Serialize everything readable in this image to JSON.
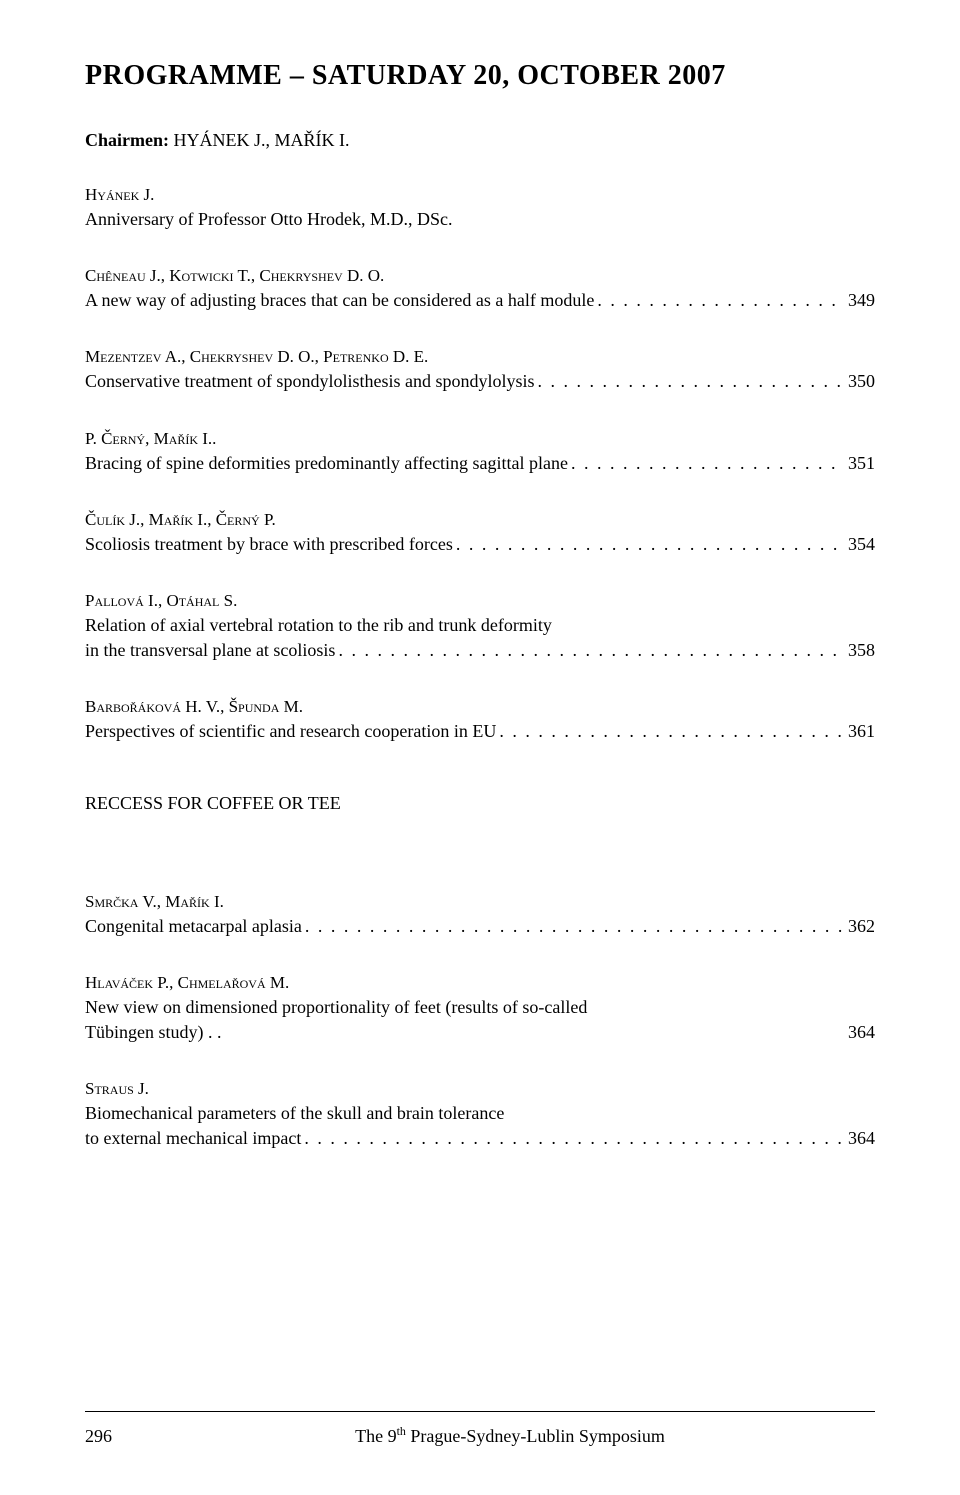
{
  "title": "PROGRAMME – SATURDAY 20, OCTOBER 2007",
  "chairmen_label": "Chairmen:",
  "chairmen_names": " HYÁNEK J., MAŘÍK I.",
  "entries": [
    {
      "author": "Hyánek J.",
      "title_line1": "Anniversary of Professor Otto Hrodek, M.D., DSc.",
      "page": "",
      "no_page": true
    },
    {
      "author": "Chêneau J., Kotwicki T., Chekryshev D. O.",
      "title_line1": "A new way of adjusting braces that can be considered as a half module",
      "page": "349"
    },
    {
      "author": "Mezentzev A., Chekryshev D. O., Petrenko D. E.",
      "title_line1": "Conservative treatment of spondylolisthesis and spondylolysis",
      "page": "350"
    },
    {
      "author": "P. Černý, Mařík I..",
      "title_line1": "Bracing of spine deformities predominantly affecting sagittal plane",
      "page": "351"
    },
    {
      "author": "Čulík J., Mařík I., Černý P.",
      "title_line1": "Scoliosis treatment by brace with prescribed forces",
      "page": "354"
    },
    {
      "author": "Pallová I., Otáhal S.",
      "title_pre": "Relation of axial vertebral rotation to the rib and trunk deformity",
      "title_line1": "in the transversal plane at scoliosis",
      "page": "358"
    },
    {
      "author": "Barbořáková H. V., Špunda M.",
      "title_line1": "Perspectives of scientific and research cooperation in EU",
      "page": "361"
    }
  ],
  "recess": "RECCESS FOR COFFEE OR TEE",
  "entries2": [
    {
      "author": "Smrčka V., Mařík I.",
      "title_line1": "Congenital metacarpal aplasia",
      "page": "362"
    },
    {
      "author": "Hlaváček P., Chmelařová M.",
      "title_pre": "New view on dimensioned proportionality of feet (results of so-called",
      "title_line1": "Tübingen study) . .",
      "page": "364",
      "nodots": true
    },
    {
      "author": "Straus J.",
      "title_pre": "Biomechanical parameters of the skull and brain tolerance",
      "title_line1": "to external mechanical impact",
      "page": "364"
    }
  ],
  "footer": {
    "page_num": "296",
    "title_pre": "The 9",
    "title_sup": "th",
    "title_post": " Prague-Sydney-Lublin Symposium"
  },
  "dots_fill": ". . . . . . . . . . . . . . . . . . . . . . . . . . . . . . . . . . . . . . . . . . . . . . . . . . . . . . . . . . . . . . . . . . . . . . . . . . . . . . . . . . . . . . . . . . . . . . . ."
}
